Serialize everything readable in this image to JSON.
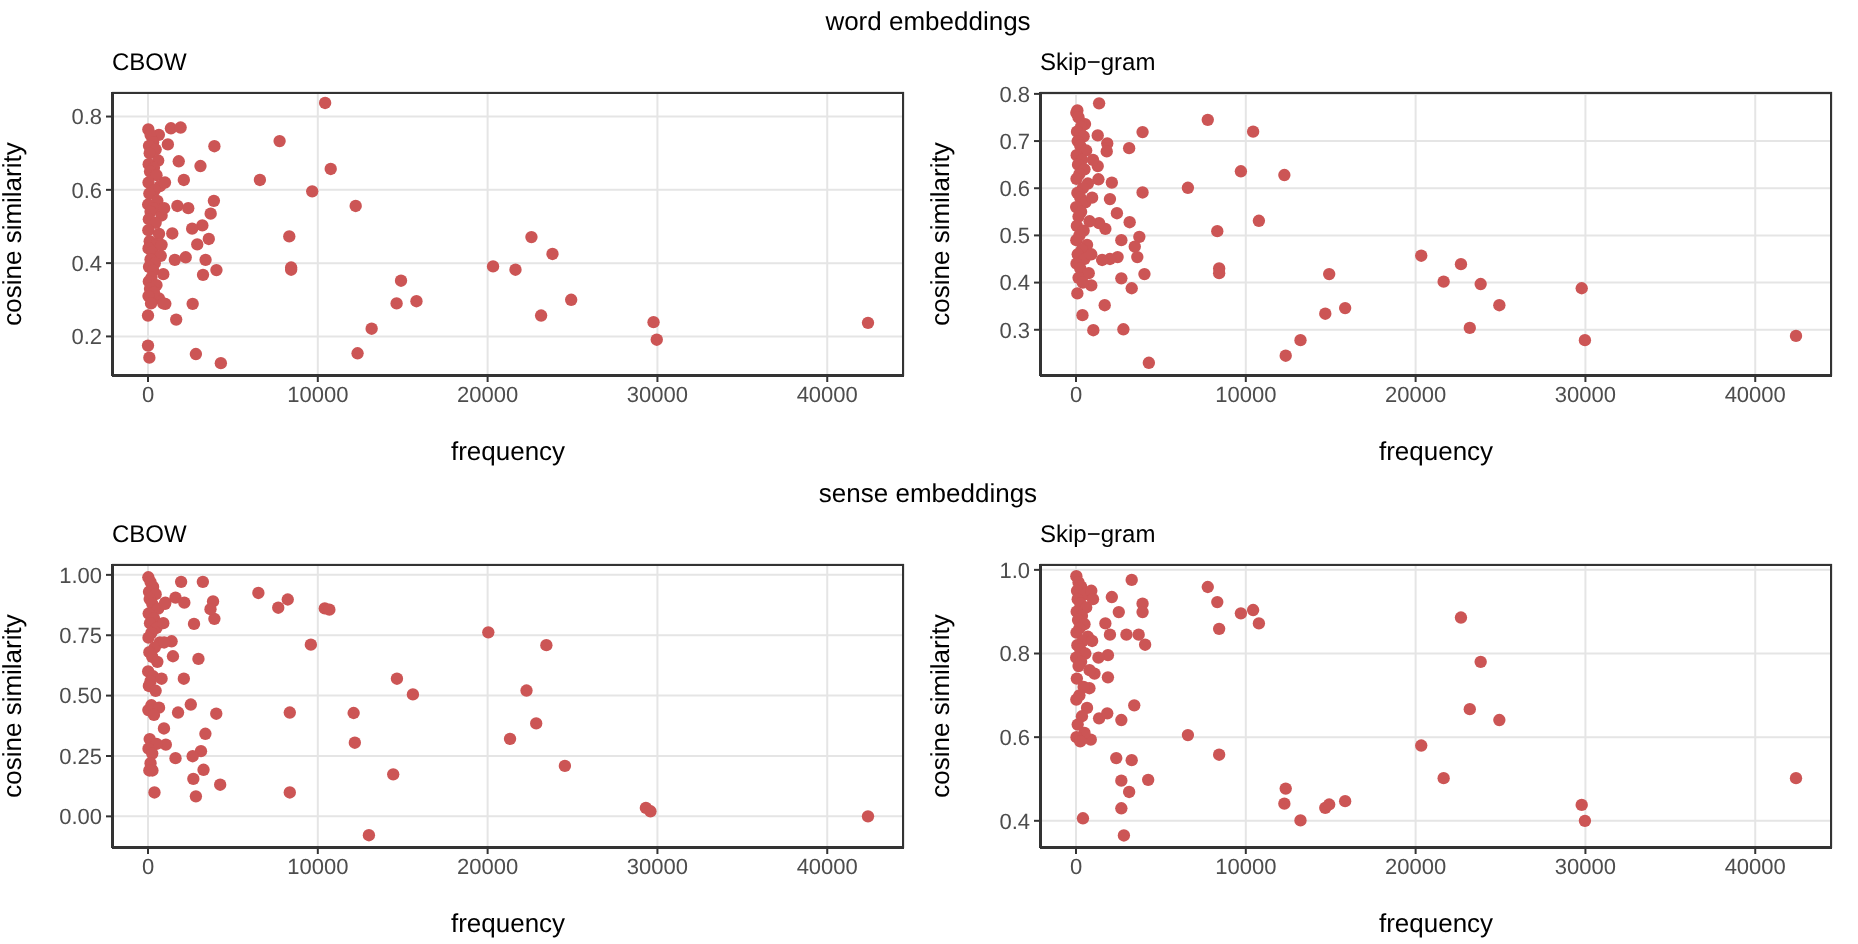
{
  "chart_data": [
    {
      "type": "scatter",
      "title": "word embeddings",
      "subtitle": "CBOW",
      "xlabel": "frequency",
      "ylabel": "cosine similarity",
      "color": "#cc5555",
      "marker": "circle",
      "grid": true,
      "xlim": [
        -2120,
        44520
      ],
      "ylim": [
        0.092,
        0.867
      ],
      "xticks": [
        0,
        10000,
        20000,
        30000,
        40000
      ],
      "yticks": [
        0.2,
        0.4,
        0.6,
        0.8
      ],
      "x": [
        10430,
        7750,
        3910,
        10760,
        3090,
        6590,
        9670,
        12230,
        8320,
        8430,
        8430,
        14900,
        14640,
        15810,
        13170,
        12340,
        20320,
        21640,
        22580,
        23820,
        23150,
        24920,
        29770,
        29960,
        42400,
        4290,
        2820,
        1660,
        2630,
        1020,
        3880,
        3690,
        3580,
        3200,
        2600,
        3390,
        3240,
        4030,
        2900,
        1350,
        1920,
        1170,
        1810,
        2110,
        1730,
        2370,
        1430,
        1580,
        2220,
        640,
        640,
        900,
        0,
        80,
        0,
        20,
        150,
        300,
        60,
        450,
        100,
        600,
        40,
        350,
        120,
        500,
        30,
        700,
        400,
        80,
        550,
        10,
        300,
        150,
        800,
        50,
        450,
        20,
        650,
        100,
        500,
        30,
        250,
        750,
        150,
        400,
        60,
        300,
        900,
        200,
        50,
        500,
        120,
        350,
        30,
        180,
        800,
        950,
        1000
      ],
      "values": [
        0.837,
        0.733,
        0.719,
        0.657,
        0.665,
        0.627,
        0.596,
        0.556,
        0.473,
        0.382,
        0.388,
        0.352,
        0.29,
        0.296,
        0.221,
        0.154,
        0.391,
        0.382,
        0.471,
        0.425,
        0.257,
        0.3,
        0.239,
        0.191,
        0.237,
        0.127,
        0.152,
        0.246,
        0.289,
        0.289,
        0.57,
        0.535,
        0.466,
        0.503,
        0.494,
        0.409,
        0.368,
        0.381,
        0.451,
        0.768,
        0.77,
        0.724,
        0.678,
        0.627,
        0.556,
        0.55,
        0.481,
        0.409,
        0.416,
        0.75,
        0.304,
        0.29,
        0.175,
        0.142,
        0.257,
        0.765,
        0.75,
        0.73,
        0.72,
        0.71,
        0.7,
        0.68,
        0.67,
        0.66,
        0.65,
        0.64,
        0.62,
        0.61,
        0.6,
        0.59,
        0.57,
        0.56,
        0.55,
        0.54,
        0.53,
        0.52,
        0.51,
        0.49,
        0.48,
        0.46,
        0.45,
        0.44,
        0.43,
        0.42,
        0.41,
        0.4,
        0.39,
        0.38,
        0.37,
        0.36,
        0.35,
        0.34,
        0.33,
        0.32,
        0.31,
        0.29,
        0.45,
        0.55,
        0.62
      ]
    },
    {
      "type": "scatter",
      "subtitle": "Skip−gram",
      "xlabel": "frequency",
      "ylabel": "cosine similarity",
      "color": "#cc5555",
      "marker": "circle",
      "grid": true,
      "xlim": [
        -2120,
        44520
      ],
      "ylim": [
        0.202,
        0.804
      ],
      "xticks": [
        0,
        10000,
        20000,
        30000,
        40000
      ],
      "yticks": [
        0.3,
        0.4,
        0.5,
        0.6,
        0.7,
        0.8
      ],
      "x": [
        7760,
        10430,
        3920,
        1360,
        3130,
        9710,
        12270,
        6590,
        3920,
        10770,
        8320,
        8430,
        8430,
        14910,
        4030,
        20330,
        22670,
        21650,
        23830,
        24930,
        14680,
        15850,
        23190,
        29780,
        29970,
        13220,
        12350,
        4290,
        42400,
        2790,
        1020,
        380,
        1690,
        2670,
        3280,
        3730,
        3610,
        3460,
        3160,
        2410,
        2670,
        2450,
        2000,
        1540,
        1730,
        1360,
        2110,
        2000,
        1840,
        1810,
        1280,
        1280,
        1320,
        530,
        900,
        80,
        80,
        20,
        150,
        300,
        60,
        450,
        100,
        250,
        600,
        40,
        350,
        120,
        500,
        200,
        30,
        700,
        400,
        80,
        250,
        550,
        10,
        300,
        150,
        800,
        50,
        450,
        200,
        20,
        650,
        350,
        100,
        500,
        30,
        250,
        750,
        150,
        400,
        900,
        950,
        1000
      ],
      "values": [
        0.745,
        0.72,
        0.719,
        0.78,
        0.685,
        0.636,
        0.628,
        0.601,
        0.591,
        0.531,
        0.509,
        0.43,
        0.42,
        0.418,
        0.418,
        0.457,
        0.439,
        0.402,
        0.397,
        0.352,
        0.334,
        0.346,
        0.304,
        0.388,
        0.278,
        0.278,
        0.245,
        0.23,
        0.287,
        0.301,
        0.299,
        0.331,
        0.352,
        0.409,
        0.388,
        0.497,
        0.454,
        0.476,
        0.528,
        0.547,
        0.49,
        0.454,
        0.45,
        0.448,
        0.514,
        0.526,
        0.612,
        0.577,
        0.695,
        0.678,
        0.712,
        0.647,
        0.619,
        0.736,
        0.394,
        0.377,
        0.765,
        0.76,
        0.75,
        0.73,
        0.72,
        0.71,
        0.7,
        0.69,
        0.68,
        0.67,
        0.66,
        0.65,
        0.64,
        0.63,
        0.62,
        0.61,
        0.6,
        0.59,
        0.58,
        0.57,
        0.56,
        0.55,
        0.54,
        0.53,
        0.52,
        0.51,
        0.5,
        0.49,
        0.48,
        0.47,
        0.46,
        0.45,
        0.44,
        0.43,
        0.42,
        0.41,
        0.4,
        0.46,
        0.58,
        0.66
      ]
    },
    {
      "type": "scatter",
      "title": "sense embeddings",
      "subtitle": "CBOW",
      "xlabel": "frequency",
      "ylabel": "cosine similarity",
      "color": "#cc5555",
      "marker": "circle",
      "grid": true,
      "xlim": [
        -2120,
        44520
      ],
      "ylim": [
        -0.131,
        1.045
      ],
      "xticks": [
        0,
        10000,
        20000,
        30000,
        40000
      ],
      "yticks": [
        {
          "value": 0,
          "label": "0.00"
        },
        {
          "value": 0.25,
          "label": "0.25"
        },
        {
          "value": 0.5,
          "label": "0.50"
        },
        {
          "value": 0.75,
          "label": "0.75"
        },
        {
          "value": 1,
          "label": "1.00"
        }
      ],
      "x": [
        6500,
        8230,
        7670,
        10410,
        10680,
        9590,
        20040,
        23460,
        14660,
        15600,
        22290,
        12110,
        8350,
        22860,
        21320,
        12180,
        24550,
        14440,
        8350,
        13010,
        29320,
        29590,
        42400,
        3230,
        1950,
        3830,
        3910,
        3680,
        2710,
        2970,
        1470,
        2110,
        1770,
        2520,
        4020,
        3380,
        940,
        1050,
        3120,
        2630,
        1620,
        3270,
        2670,
        4250,
        2820,
        380,
        260,
        1390,
        1620,
        2140,
        1020,
        20,
        150,
        300,
        60,
        450,
        100,
        250,
        600,
        40,
        350,
        120,
        500,
        200,
        30,
        700,
        400,
        80,
        250,
        550,
        10,
        300,
        150,
        800,
        50,
        450,
        200,
        20,
        650,
        350,
        100,
        500,
        30,
        250,
        150,
        80,
        900,
        1000,
        950
      ],
      "values": [
        0.925,
        0.898,
        0.864,
        0.861,
        0.856,
        0.711,
        0.762,
        0.709,
        0.57,
        0.505,
        0.521,
        0.428,
        0.43,
        0.385,
        0.321,
        0.305,
        0.209,
        0.174,
        0.099,
        -0.078,
        0.035,
        0.021,
        0.0,
        0.971,
        0.971,
        0.89,
        0.818,
        0.858,
        0.797,
        0.652,
        0.663,
        0.57,
        0.43,
        0.463,
        0.425,
        0.342,
        0.364,
        0.297,
        0.27,
        0.249,
        0.241,
        0.193,
        0.155,
        0.131,
        0.083,
        0.099,
        0.19,
        0.725,
        0.906,
        0.885,
        0.885,
        0.99,
        0.97,
        0.95,
        0.93,
        0.92,
        0.9,
        0.88,
        0.86,
        0.84,
        0.82,
        0.8,
        0.78,
        0.76,
        0.74,
        0.72,
        0.7,
        0.68,
        0.66,
        0.64,
        0.6,
        0.58,
        0.56,
        0.57,
        0.54,
        0.52,
        0.46,
        0.44,
        0.45,
        0.42,
        0.32,
        0.3,
        0.28,
        0.26,
        0.22,
        0.19,
        0.8,
        0.88,
        0.72
      ]
    },
    {
      "type": "scatter",
      "subtitle": "Skip−gram",
      "xlabel": "frequency",
      "ylabel": "cosine similarity",
      "color": "#cc5555",
      "marker": "circle",
      "grid": true,
      "xlim": [
        -2120,
        44520
      ],
      "ylim": [
        0.335,
        1.014
      ],
      "xticks": [
        0,
        10000,
        20000,
        30000,
        40000
      ],
      "yticks": [
        0.4,
        0.6,
        0.8,
        {
          "value": 1,
          "label": "1.0"
        }
      ],
      "x": [
        7760,
        8320,
        8430,
        9710,
        10430,
        10770,
        3280,
        3920,
        3920,
        3690,
        4070,
        2970,
        2520,
        2110,
        22670,
        23830,
        23190,
        24930,
        6590,
        20330,
        21650,
        8430,
        42400,
        12350,
        12270,
        13220,
        14680,
        14910,
        15850,
        29780,
        29970,
        3430,
        2670,
        1360,
        1840,
        2370,
        3280,
        2670,
        4250,
        3130,
        2670,
        2820,
        410,
        1880,
        1880,
        1320,
        1730,
        2000,
        1090,
        790,
        870,
        20,
        150,
        300,
        60,
        450,
        100,
        250,
        600,
        40,
        350,
        120,
        500,
        200,
        30,
        700,
        400,
        80,
        250,
        550,
        10,
        300,
        150,
        800,
        50,
        450,
        200,
        20,
        650,
        350,
        100,
        500,
        30,
        250,
        900,
        1000,
        950
      ],
      "values": [
        0.959,
        0.923,
        0.859,
        0.896,
        0.904,
        0.872,
        0.976,
        0.919,
        0.899,
        0.845,
        0.821,
        0.845,
        0.899,
        0.935,
        0.886,
        0.78,
        0.667,
        0.641,
        0.605,
        0.58,
        0.502,
        0.558,
        0.502,
        0.477,
        0.441,
        0.401,
        0.431,
        0.439,
        0.447,
        0.438,
        0.4,
        0.676,
        0.641,
        0.645,
        0.657,
        0.55,
        0.545,
        0.496,
        0.498,
        0.469,
        0.43,
        0.365,
        0.406,
        0.743,
        0.796,
        0.79,
        0.872,
        0.845,
        0.752,
        0.717,
        0.594,
        0.985,
        0.97,
        0.96,
        0.95,
        0.94,
        0.93,
        0.92,
        0.91,
        0.9,
        0.89,
        0.88,
        0.87,
        0.86,
        0.85,
        0.84,
        0.83,
        0.82,
        0.81,
        0.8,
        0.79,
        0.78,
        0.77,
        0.76,
        0.74,
        0.72,
        0.7,
        0.69,
        0.67,
        0.65,
        0.63,
        0.61,
        0.6,
        0.59,
        0.95,
        0.93,
        0.83
      ]
    }
  ]
}
